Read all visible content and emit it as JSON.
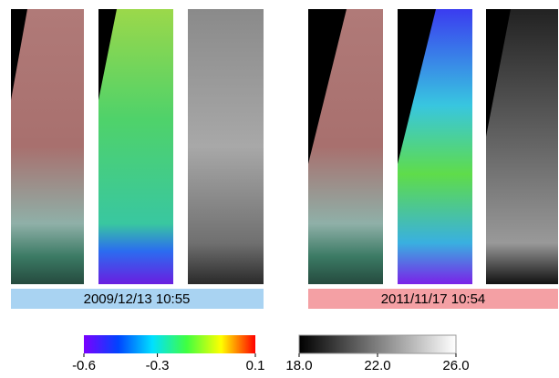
{
  "panels": [
    {
      "label": "2009/12/13 10:55"
    },
    {
      "label": "2011/11/17 10:54"
    }
  ],
  "colorbars": [
    {
      "lim": [
        -0.6,
        0.1
      ],
      "ticks": [
        -0.6,
        -0.3,
        0.1
      ]
    },
    {
      "lim": [
        18,
        26
      ],
      "ticks": [
        {
          "value": 18,
          "label": "18.0"
        },
        {
          "value": 22,
          "label": "22.0"
        },
        {
          "value": 26,
          "label": "26.0"
        }
      ]
    }
  ]
}
